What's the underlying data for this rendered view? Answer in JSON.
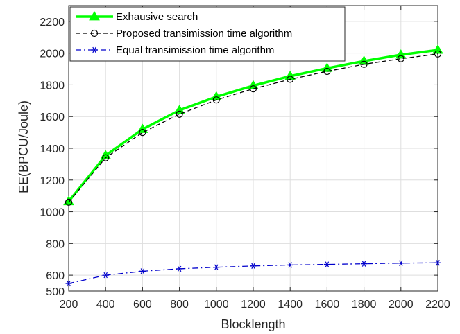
{
  "chart_data": {
    "type": "line",
    "xlabel": "Blocklength",
    "ylabel": "EE(BPCU/Joule)",
    "xlim": [
      200,
      2200
    ],
    "ylim": [
      500,
      2300
    ],
    "xticks": [
      "200",
      "400",
      "600",
      "800",
      "1000",
      "1200",
      "1400",
      "1600",
      "1800",
      "2000",
      "2200"
    ],
    "yticks": [
      "500",
      "600",
      "800",
      "1000",
      "1200",
      "1400",
      "1600",
      "1800",
      "2000",
      "2200"
    ],
    "grid": true,
    "legend_position": "top-left",
    "x": [
      200,
      400,
      600,
      800,
      1000,
      1200,
      1400,
      1600,
      1800,
      2000,
      2200
    ],
    "series": [
      {
        "name": "Exhausive search",
        "color": "#00ff00",
        "style": "solid",
        "marker": "triangle",
        "values": [
          1065,
          1355,
          1520,
          1640,
          1725,
          1795,
          1855,
          1905,
          1950,
          1990,
          2020
        ]
      },
      {
        "name": "Proposed transimission time algorithm",
        "color": "#000000",
        "style": "dashed",
        "marker": "circle",
        "values": [
          1060,
          1340,
          1500,
          1615,
          1705,
          1775,
          1835,
          1885,
          1930,
          1965,
          1995
        ]
      },
      {
        "name": "Equal transimission time algorithm",
        "color": "#0000cc",
        "style": "dashdot",
        "marker": "star",
        "values": [
          548,
          600,
          625,
          640,
          650,
          658,
          664,
          668,
          672,
          676,
          678
        ]
      }
    ]
  }
}
